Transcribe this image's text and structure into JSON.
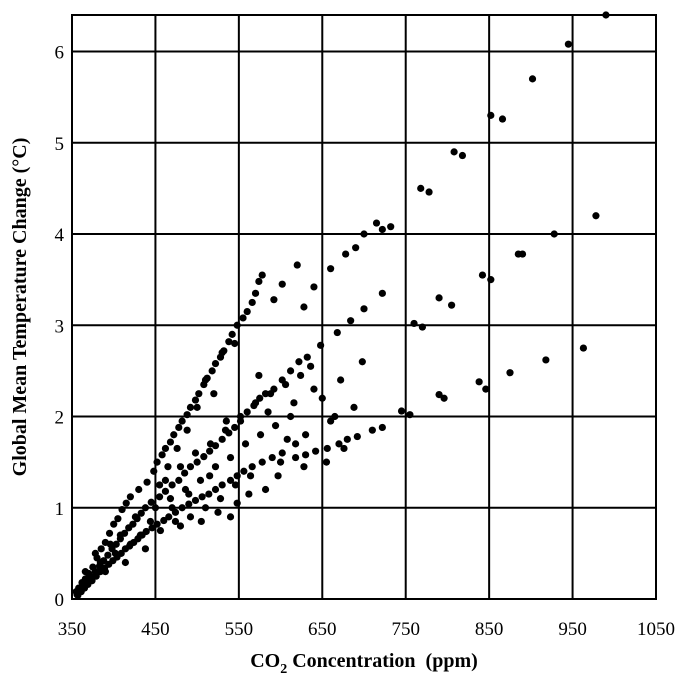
{
  "chart_data": {
    "type": "scatter",
    "title": "",
    "xlabel": "CO",
    "xlabel_subscript": "2",
    "xlabel_suffix": " Concentration  (ppm)",
    "ylabel": "Global Mean Temperature Change (°C)",
    "xlim": [
      350,
      1050
    ],
    "ylim": [
      0,
      6.4
    ],
    "xticks": [
      350,
      450,
      550,
      650,
      750,
      850,
      950,
      1050
    ],
    "xtick_labels": [
      "350",
      "450",
      "550",
      "650",
      "750",
      "850",
      "950",
      "1050"
    ],
    "yticks": [
      0,
      1,
      2,
      3,
      4,
      5,
      6
    ],
    "ytick_labels": [
      "0",
      "1",
      "2",
      "3",
      "4",
      "5",
      "6"
    ],
    "grid": true,
    "legend": "none",
    "marker_color": "#000000",
    "series": [
      {
        "points": [
          [
            355,
            0.08
          ],
          [
            358,
            0.12
          ],
          [
            362,
            0.18
          ],
          [
            366,
            0.22
          ],
          [
            370,
            0.28
          ],
          [
            375,
            0.35
          ],
          [
            380,
            0.45
          ],
          [
            385,
            0.55
          ],
          [
            390,
            0.62
          ],
          [
            395,
            0.72
          ],
          [
            400,
            0.82
          ],
          [
            405,
            0.88
          ],
          [
            410,
            0.98
          ],
          [
            415,
            1.05
          ],
          [
            420,
            1.12
          ],
          [
            430,
            1.2
          ],
          [
            440,
            1.28
          ],
          [
            448,
            1.4
          ],
          [
            452,
            1.5
          ],
          [
            458,
            1.58
          ],
          [
            462,
            1.65
          ],
          [
            468,
            1.72
          ],
          [
            472,
            1.8
          ],
          [
            478,
            1.88
          ],
          [
            482,
            1.95
          ],
          [
            488,
            2.02
          ],
          [
            492,
            2.1
          ],
          [
            498,
            2.18
          ],
          [
            502,
            2.25
          ],
          [
            508,
            2.35
          ],
          [
            512,
            2.42
          ],
          [
            518,
            2.5
          ],
          [
            522,
            2.58
          ],
          [
            528,
            2.65
          ],
          [
            532,
            2.72
          ],
          [
            538,
            2.82
          ],
          [
            542,
            2.9
          ],
          [
            548,
            3.0
          ],
          [
            555,
            3.08
          ],
          [
            560,
            3.15
          ],
          [
            566,
            3.25
          ],
          [
            570,
            3.35
          ],
          [
            574,
            3.48
          ],
          [
            578,
            3.55
          ],
          [
            592,
            3.28
          ],
          [
            602,
            3.45
          ],
          [
            620,
            3.66
          ],
          [
            628,
            3.2
          ],
          [
            640,
            3.42
          ],
          [
            660,
            3.62
          ],
          [
            678,
            3.78
          ],
          [
            690,
            3.85
          ],
          [
            700,
            4.0
          ],
          [
            715,
            4.12
          ],
          [
            722,
            4.05
          ],
          [
            732,
            4.08
          ],
          [
            768,
            4.5
          ],
          [
            778,
            4.46
          ],
          [
            808,
            4.9
          ],
          [
            818,
            4.86
          ],
          [
            852,
            5.3
          ],
          [
            866,
            5.26
          ],
          [
            902,
            5.7
          ],
          [
            945,
            6.08
          ],
          [
            990,
            6.4
          ]
        ]
      },
      {
        "points": [
          [
            356,
            0.05
          ],
          [
            360,
            0.1
          ],
          [
            364,
            0.15
          ],
          [
            368,
            0.2
          ],
          [
            372,
            0.25
          ],
          [
            378,
            0.3
          ],
          [
            383,
            0.36
          ],
          [
            388,
            0.42
          ],
          [
            393,
            0.48
          ],
          [
            398,
            0.55
          ],
          [
            403,
            0.6
          ],
          [
            408,
            0.66
          ],
          [
            413,
            0.72
          ],
          [
            418,
            0.78
          ],
          [
            423,
            0.82
          ],
          [
            428,
            0.88
          ],
          [
            433,
            0.94
          ],
          [
            438,
            1.0
          ],
          [
            445,
            1.06
          ],
          [
            455,
            1.12
          ],
          [
            462,
            1.18
          ],
          [
            470,
            1.25
          ],
          [
            478,
            1.3
          ],
          [
            485,
            1.38
          ],
          [
            492,
            1.45
          ],
          [
            500,
            1.5
          ],
          [
            508,
            1.56
          ],
          [
            515,
            1.62
          ],
          [
            522,
            1.68
          ],
          [
            530,
            1.75
          ],
          [
            538,
            1.82
          ],
          [
            545,
            1.88
          ],
          [
            552,
            1.95
          ],
          [
            560,
            2.05
          ],
          [
            568,
            2.12
          ],
          [
            575,
            2.2
          ],
          [
            582,
            2.25
          ],
          [
            592,
            2.3
          ],
          [
            602,
            2.4
          ],
          [
            612,
            2.5
          ],
          [
            622,
            2.6
          ],
          [
            632,
            2.65
          ],
          [
            648,
            2.78
          ],
          [
            668,
            2.92
          ],
          [
            684,
            3.05
          ],
          [
            700,
            3.18
          ],
          [
            722,
            3.35
          ],
          [
            760,
            3.02
          ],
          [
            770,
            2.98
          ],
          [
            790,
            3.3
          ],
          [
            805,
            3.22
          ],
          [
            842,
            3.55
          ],
          [
            852,
            3.5
          ],
          [
            885,
            3.78
          ],
          [
            890,
            3.78
          ],
          [
            928,
            4.0
          ],
          [
            978,
            4.2
          ]
        ]
      },
      {
        "points": [
          [
            357,
            0.04
          ],
          [
            361,
            0.08
          ],
          [
            365,
            0.12
          ],
          [
            369,
            0.16
          ],
          [
            374,
            0.2
          ],
          [
            379,
            0.25
          ],
          [
            384,
            0.3
          ],
          [
            389,
            0.34
          ],
          [
            394,
            0.38
          ],
          [
            399,
            0.42
          ],
          [
            404,
            0.46
          ],
          [
            409,
            0.5
          ],
          [
            414,
            0.55
          ],
          [
            419,
            0.58
          ],
          [
            424,
            0.62
          ],
          [
            429,
            0.66
          ],
          [
            434,
            0.7
          ],
          [
            439,
            0.74
          ],
          [
            446,
            0.78
          ],
          [
            452,
            0.82
          ],
          [
            460,
            0.86
          ],
          [
            466,
            0.9
          ],
          [
            474,
            0.95
          ],
          [
            482,
            1.0
          ],
          [
            490,
            1.04
          ],
          [
            498,
            1.08
          ],
          [
            506,
            1.12
          ],
          [
            514,
            1.15
          ],
          [
            522,
            1.2
          ],
          [
            530,
            1.25
          ],
          [
            540,
            1.3
          ],
          [
            548,
            1.35
          ],
          [
            556,
            1.4
          ],
          [
            566,
            1.45
          ],
          [
            578,
            1.5
          ],
          [
            590,
            1.55
          ],
          [
            602,
            1.6
          ],
          [
            618,
            1.55
          ],
          [
            630,
            1.58
          ],
          [
            642,
            1.62
          ],
          [
            656,
            1.65
          ],
          [
            670,
            1.7
          ],
          [
            680,
            1.75
          ],
          [
            692,
            1.78
          ],
          [
            710,
            1.85
          ],
          [
            722,
            1.88
          ],
          [
            745,
            2.06
          ],
          [
            755,
            2.02
          ],
          [
            790,
            2.24
          ],
          [
            796,
            2.2
          ],
          [
            838,
            2.38
          ],
          [
            846,
            2.3
          ],
          [
            875,
            2.48
          ],
          [
            918,
            2.62
          ],
          [
            963,
            2.75
          ]
        ]
      },
      {
        "points": [
          [
            360,
            0.1
          ],
          [
            366,
            0.3
          ],
          [
            372,
            0.2
          ],
          [
            378,
            0.5
          ],
          [
            384,
            0.4
          ],
          [
            390,
            0.3
          ],
          [
            396,
            0.6
          ],
          [
            402,
            0.5
          ],
          [
            408,
            0.7
          ],
          [
            414,
            0.4
          ],
          [
            420,
            0.6
          ],
          [
            426,
            0.9
          ],
          [
            432,
            0.7
          ],
          [
            438,
            0.55
          ],
          [
            444,
            0.85
          ],
          [
            450,
            1.0
          ],
          [
            456,
            0.75
          ],
          [
            462,
            1.3
          ],
          [
            468,
            1.1
          ],
          [
            474,
            0.85
          ],
          [
            480,
            1.45
          ],
          [
            486,
            1.2
          ],
          [
            492,
            0.9
          ],
          [
            498,
            1.6
          ],
          [
            504,
            1.3
          ],
          [
            510,
            1.0
          ],
          [
            516,
            1.7
          ],
          [
            522,
            1.45
          ],
          [
            528,
            1.1
          ],
          [
            534,
            1.85
          ],
          [
            540,
            1.55
          ],
          [
            546,
            1.25
          ],
          [
            552,
            2.0
          ],
          [
            558,
            1.7
          ],
          [
            564,
            1.35
          ],
          [
            570,
            2.15
          ],
          [
            576,
            1.8
          ],
          [
            582,
            1.2
          ],
          [
            588,
            2.25
          ],
          [
            594,
            1.9
          ],
          [
            600,
            1.5
          ],
          [
            606,
            2.35
          ],
          [
            612,
            2.0
          ],
          [
            618,
            1.7
          ],
          [
            624,
            2.45
          ],
          [
            630,
            1.8
          ],
          [
            636,
            2.55
          ],
          [
            650,
            2.2
          ],
          [
            660,
            1.95
          ],
          [
            672,
            2.4
          ],
          [
            688,
            2.1
          ],
          [
            698,
            2.6
          ],
          [
            525,
            0.95
          ],
          [
            530,
            2.7
          ],
          [
            540,
            0.9
          ],
          [
            545,
            2.8
          ],
          [
            510,
            2.4
          ],
          [
            500,
            2.1
          ],
          [
            488,
            1.85
          ],
          [
            476,
            1.65
          ],
          [
            465,
            1.45
          ],
          [
            455,
            1.25
          ],
          [
            470,
            1.0
          ],
          [
            480,
            0.8
          ],
          [
            490,
            1.15
          ],
          [
            505,
            0.85
          ],
          [
            515,
            1.35
          ],
          [
            520,
            2.25
          ],
          [
            535,
            1.95
          ],
          [
            548,
            1.05
          ],
          [
            562,
            1.15
          ],
          [
            574,
            2.45
          ],
          [
            585,
            2.05
          ],
          [
            597,
            1.35
          ],
          [
            608,
            1.75
          ],
          [
            616,
            2.15
          ],
          [
            628,
            1.45
          ],
          [
            640,
            2.3
          ],
          [
            655,
            1.5
          ],
          [
            665,
            2.0
          ],
          [
            676,
            1.65
          ]
        ]
      }
    ]
  }
}
